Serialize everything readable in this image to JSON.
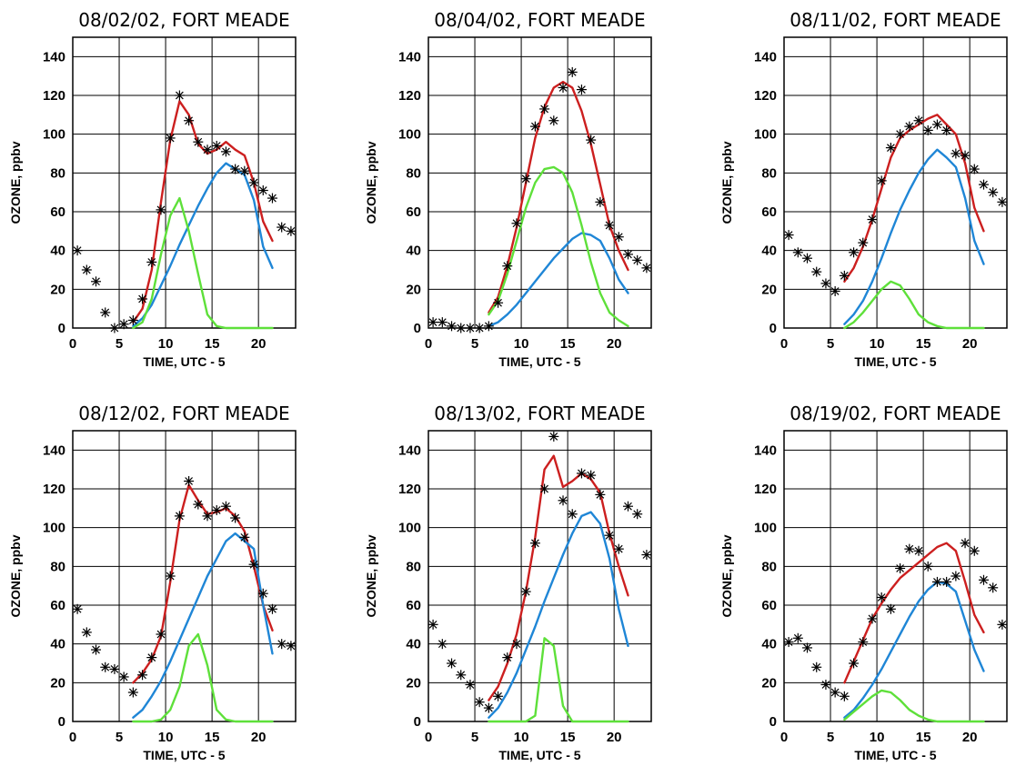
{
  "colors": {
    "red_series": "#cc1f1f",
    "blue_series": "#1f86d6",
    "green_series": "#5ee03a",
    "observations": "#000000"
  },
  "chart_data": [
    {
      "type": "line",
      "title": "08/02/02, FORT MEADE",
      "xlabel": "TIME, UTC - 5",
      "ylabel": "OZONE, ppbv",
      "xlim": [
        0,
        24
      ],
      "ylim": [
        0,
        150
      ],
      "x_ticks": [
        0,
        5,
        10,
        15,
        20
      ],
      "y_ticks": [
        0,
        20,
        40,
        60,
        80,
        100,
        120,
        140
      ],
      "grid": true,
      "observations": {
        "marker": "asterisk",
        "x": [
          0.5,
          1.5,
          2.5,
          3.5,
          4.5,
          5.5,
          6.5,
          7.5,
          8.5,
          9.5,
          10.5,
          11.5,
          12.5,
          13.5,
          14.5,
          15.5,
          16.5,
          17.5,
          18.5,
          19.5,
          20.5,
          21.5,
          22.5,
          23.5
        ],
        "y": [
          40,
          30,
          24,
          8,
          0,
          2,
          4,
          15,
          34,
          61,
          98,
          120,
          107,
          96,
          92,
          94,
          91,
          82,
          81,
          75,
          71,
          67,
          52,
          50
        ]
      },
      "series": [
        {
          "color": "red",
          "x": [
            6.5,
            7.5,
            8.5,
            9.5,
            10.5,
            11.5,
            12.5,
            13.5,
            14.5,
            15.5,
            16.5,
            17.5,
            18.5,
            19.5,
            20.5,
            21.5
          ],
          "y": [
            3,
            10,
            30,
            65,
            97,
            117,
            110,
            95,
            90,
            92,
            96,
            92,
            89,
            75,
            55,
            45
          ]
        },
        {
          "color": "blue",
          "x": [
            6.5,
            7.5,
            8.5,
            9.5,
            10.5,
            11.5,
            12.5,
            13.5,
            14.5,
            15.5,
            16.5,
            17.5,
            18.5,
            19.5,
            20.5,
            21.5
          ],
          "y": [
            1,
            5,
            12,
            22,
            32,
            43,
            53,
            63,
            72,
            80,
            85,
            82,
            79,
            66,
            42,
            31
          ]
        },
        {
          "color": "green",
          "x": [
            6.5,
            7.5,
            8.5,
            9.5,
            10.5,
            11.5,
            12.5,
            13.5,
            14.5,
            15.5,
            16.5,
            17.5,
            18.5,
            19.5,
            20.5,
            21.5
          ],
          "y": [
            0,
            3,
            15,
            38,
            58,
            67,
            50,
            28,
            7,
            1,
            0,
            0,
            0,
            0,
            0,
            0
          ]
        }
      ]
    },
    {
      "type": "line",
      "title": "08/04/02, FORT MEADE",
      "xlabel": "TIME, UTC - 5",
      "ylabel": "OZONE, ppbv",
      "xlim": [
        0,
        24
      ],
      "ylim": [
        0,
        150
      ],
      "x_ticks": [
        0,
        5,
        10,
        15,
        20
      ],
      "y_ticks": [
        0,
        20,
        40,
        60,
        80,
        100,
        120,
        140
      ],
      "grid": true,
      "observations": {
        "marker": "asterisk",
        "x": [
          0.5,
          1.5,
          2.5,
          3.5,
          4.5,
          5.5,
          6.5,
          7.5,
          8.5,
          9.5,
          10.5,
          11.5,
          12.5,
          13.5,
          14.5,
          15.5,
          16.5,
          17.5,
          18.5,
          19.5,
          20.5,
          21.5,
          22.5,
          23.5
        ],
        "y": [
          3,
          3,
          1,
          0,
          0,
          0,
          1,
          13,
          32,
          54,
          77,
          104,
          113,
          107,
          124,
          132,
          123,
          97,
          65,
          53,
          47,
          38,
          35,
          31
        ]
      },
      "series": [
        {
          "color": "red",
          "x": [
            6.5,
            7.5,
            8.5,
            9.5,
            10.5,
            11.5,
            12.5,
            13.5,
            14.5,
            15.5,
            16.5,
            17.5,
            18.5,
            19.5,
            20.5,
            21.5
          ],
          "y": [
            8,
            16,
            32,
            52,
            75,
            98,
            114,
            124,
            127,
            124,
            112,
            95,
            74,
            53,
            40,
            30
          ]
        },
        {
          "color": "blue",
          "x": [
            6.5,
            7.5,
            8.5,
            9.5,
            10.5,
            11.5,
            12.5,
            13.5,
            14.5,
            15.5,
            16.5,
            17.5,
            18.5,
            19.5,
            20.5,
            21.5
          ],
          "y": [
            1,
            3,
            7,
            12,
            18,
            24,
            30,
            36,
            41,
            46,
            49,
            48,
            45,
            36,
            25,
            18
          ]
        },
        {
          "color": "green",
          "x": [
            6.5,
            7.5,
            8.5,
            9.5,
            10.5,
            11.5,
            12.5,
            13.5,
            14.5,
            15.5,
            16.5,
            17.5,
            18.5,
            19.5,
            20.5,
            21.5
          ],
          "y": [
            7,
            14,
            28,
            45,
            62,
            75,
            82,
            83,
            80,
            70,
            53,
            34,
            18,
            8,
            4,
            1
          ]
        }
      ]
    },
    {
      "type": "line",
      "title": "08/11/02, FORT MEADE",
      "xlabel": "TIME, UTC - 5",
      "ylabel": "OZONE, ppbv",
      "xlim": [
        0,
        24
      ],
      "ylim": [
        0,
        150
      ],
      "x_ticks": [
        0,
        5,
        10,
        15,
        20
      ],
      "y_ticks": [
        0,
        20,
        40,
        60,
        80,
        100,
        120,
        140
      ],
      "grid": true,
      "observations": {
        "marker": "asterisk",
        "x": [
          0.5,
          1.5,
          2.5,
          3.5,
          4.5,
          5.5,
          6.5,
          7.5,
          8.5,
          9.5,
          10.5,
          11.5,
          12.5,
          13.5,
          14.5,
          15.5,
          16.5,
          17.5,
          18.5,
          19.5,
          20.5,
          21.5,
          22.5,
          23.5
        ],
        "y": [
          48,
          39,
          36,
          29,
          23,
          19,
          27,
          39,
          44,
          56,
          76,
          93,
          100,
          104,
          107,
          102,
          105,
          102,
          90,
          89,
          82,
          74,
          70,
          65
        ]
      },
      "series": [
        {
          "color": "red",
          "x": [
            6.5,
            7.5,
            8.5,
            9.5,
            10.5,
            11.5,
            12.5,
            13.5,
            14.5,
            15.5,
            16.5,
            17.5,
            18.5,
            19.5,
            20.5,
            21.5
          ],
          "y": [
            24,
            31,
            42,
            56,
            72,
            88,
            98,
            102,
            105,
            108,
            110,
            105,
            100,
            85,
            62,
            50
          ]
        },
        {
          "color": "blue",
          "x": [
            6.5,
            7.5,
            8.5,
            9.5,
            10.5,
            11.5,
            12.5,
            13.5,
            14.5,
            15.5,
            16.5,
            17.5,
            18.5,
            19.5,
            20.5,
            21.5
          ],
          "y": [
            2,
            7,
            14,
            24,
            36,
            49,
            61,
            71,
            80,
            87,
            92,
            88,
            83,
            67,
            45,
            33
          ]
        },
        {
          "color": "green",
          "x": [
            6.5,
            7.5,
            8.5,
            9.5,
            10.5,
            11.5,
            12.5,
            13.5,
            14.5,
            15.5,
            16.5,
            17.5,
            18.5,
            19.5,
            20.5,
            21.5
          ],
          "y": [
            0,
            3,
            8,
            14,
            20,
            24,
            22,
            15,
            7,
            3,
            1,
            0,
            0,
            0,
            0,
            0
          ]
        }
      ]
    },
    {
      "type": "line",
      "title": "08/12/02, FORT MEADE",
      "xlabel": "TIME, UTC - 5",
      "ylabel": "OZONE, ppbv",
      "xlim": [
        0,
        24
      ],
      "ylim": [
        0,
        150
      ],
      "x_ticks": [
        0,
        5,
        10,
        15,
        20
      ],
      "y_ticks": [
        0,
        20,
        40,
        60,
        80,
        100,
        120,
        140
      ],
      "grid": true,
      "observations": {
        "marker": "asterisk",
        "x": [
          0.5,
          1.5,
          2.5,
          3.5,
          4.5,
          5.5,
          6.5,
          7.5,
          8.5,
          9.5,
          10.5,
          11.5,
          12.5,
          13.5,
          14.5,
          15.5,
          16.5,
          17.5,
          18.5,
          19.5,
          20.5,
          21.5,
          22.5,
          23.5
        ],
        "y": [
          58,
          46,
          37,
          28,
          27,
          23,
          15,
          24,
          33,
          45,
          75,
          106,
          124,
          112,
          106,
          109,
          111,
          105,
          95,
          81,
          66,
          58,
          40,
          39
        ]
      },
      "series": [
        {
          "color": "red",
          "x": [
            6.5,
            7.5,
            8.5,
            9.5,
            10.5,
            11.5,
            12.5,
            13.5,
            14.5,
            15.5,
            16.5,
            17.5,
            18.5,
            19.5,
            20.5,
            21.5
          ],
          "y": [
            20,
            25,
            32,
            44,
            72,
            104,
            122,
            114,
            107,
            108,
            110,
            106,
            98,
            80,
            60,
            47
          ]
        },
        {
          "color": "blue",
          "x": [
            6.5,
            7.5,
            8.5,
            9.5,
            10.5,
            11.5,
            12.5,
            13.5,
            14.5,
            15.5,
            16.5,
            17.5,
            18.5,
            19.5,
            20.5,
            21.5
          ],
          "y": [
            2,
            6,
            13,
            21,
            31,
            42,
            53,
            64,
            75,
            84,
            93,
            97,
            93,
            89,
            60,
            35
          ]
        },
        {
          "color": "green",
          "x": [
            6.5,
            7.5,
            8.5,
            9.5,
            10.5,
            11.5,
            12.5,
            13.5,
            14.5,
            15.5,
            16.5,
            17.5,
            18.5,
            19.5,
            20.5,
            21.5
          ],
          "y": [
            0,
            0,
            0,
            1,
            6,
            18,
            39,
            45,
            29,
            6,
            1,
            0,
            0,
            0,
            0,
            0
          ]
        }
      ]
    },
    {
      "type": "line",
      "title": "08/13/02, FORT MEADE",
      "xlabel": "TIME, UTC - 5",
      "ylabel": "OZONE, ppbv",
      "xlim": [
        0,
        24
      ],
      "ylim": [
        0,
        150
      ],
      "x_ticks": [
        0,
        5,
        10,
        15,
        20
      ],
      "y_ticks": [
        0,
        20,
        40,
        60,
        80,
        100,
        120,
        140
      ],
      "grid": true,
      "observations": {
        "marker": "asterisk",
        "x": [
          0.5,
          1.5,
          2.5,
          3.5,
          4.5,
          5.5,
          6.5,
          7.5,
          8.5,
          9.5,
          10.5,
          11.5,
          12.5,
          13.5,
          14.5,
          15.5,
          16.5,
          17.5,
          18.5,
          19.5,
          20.5,
          21.5,
          22.5,
          23.5
        ],
        "y": [
          50,
          40,
          30,
          24,
          19,
          10,
          7,
          13,
          33,
          40,
          67,
          92,
          120,
          147,
          114,
          107,
          128,
          127,
          117,
          96,
          89,
          111,
          107,
          86
        ]
      },
      "series": [
        {
          "color": "red",
          "x": [
            6.5,
            7.5,
            8.5,
            9.5,
            10.5,
            11.5,
            12.5,
            13.5,
            14.5,
            15.5,
            16.5,
            17.5,
            18.5,
            19.5,
            20.5,
            21.5
          ],
          "y": [
            11,
            18,
            30,
            45,
            67,
            95,
            130,
            137,
            121,
            124,
            128,
            125,
            118,
            97,
            80,
            65
          ]
        },
        {
          "color": "blue",
          "x": [
            6.5,
            7.5,
            8.5,
            9.5,
            10.5,
            11.5,
            12.5,
            13.5,
            14.5,
            15.5,
            16.5,
            17.5,
            18.5,
            19.5,
            20.5,
            21.5
          ],
          "y": [
            2,
            7,
            15,
            25,
            37,
            49,
            62,
            74,
            86,
            97,
            106,
            108,
            102,
            84,
            58,
            39
          ]
        },
        {
          "color": "green",
          "x": [
            6.5,
            7.5,
            8.5,
            9.5,
            10.5,
            11.5,
            12.5,
            13.5,
            14.5,
            15.5,
            16.5,
            17.5,
            18.5,
            19.5,
            20.5,
            21.5
          ],
          "y": [
            0,
            0,
            0,
            0,
            0,
            3,
            43,
            39,
            8,
            0,
            0,
            0,
            0,
            0,
            0,
            0
          ]
        }
      ]
    },
    {
      "type": "line",
      "title": "08/19/02, FORT MEADE",
      "xlabel": "TIME, UTC - 5",
      "ylabel": "OZONE, ppbv",
      "xlim": [
        0,
        24
      ],
      "ylim": [
        0,
        150
      ],
      "x_ticks": [
        0,
        5,
        10,
        15,
        20
      ],
      "y_ticks": [
        0,
        20,
        40,
        60,
        80,
        100,
        120,
        140
      ],
      "grid": true,
      "observations": {
        "marker": "asterisk",
        "x": [
          0.5,
          1.5,
          2.5,
          3.5,
          4.5,
          5.5,
          6.5,
          7.5,
          8.5,
          9.5,
          10.5,
          11.5,
          12.5,
          13.5,
          14.5,
          15.5,
          16.5,
          17.5,
          18.5,
          19.5,
          20.5,
          21.5,
          22.5,
          23.5
        ],
        "y": [
          41,
          43,
          38,
          28,
          19,
          15,
          13,
          30,
          41,
          53,
          64,
          58,
          79,
          89,
          88,
          80,
          72,
          72,
          75,
          92,
          88,
          73,
          69,
          50
        ]
      },
      "series": [
        {
          "color": "red",
          "x": [
            6.5,
            7.5,
            8.5,
            9.5,
            10.5,
            11.5,
            12.5,
            13.5,
            14.5,
            15.5,
            16.5,
            17.5,
            18.5,
            19.5,
            20.5,
            21.5
          ],
          "y": [
            20,
            31,
            42,
            53,
            61,
            68,
            74,
            78,
            82,
            86,
            90,
            92,
            88,
            72,
            55,
            46
          ]
        },
        {
          "color": "blue",
          "x": [
            6.5,
            7.5,
            8.5,
            9.5,
            10.5,
            11.5,
            12.5,
            13.5,
            14.5,
            15.5,
            16.5,
            17.5,
            18.5,
            19.5,
            20.5,
            21.5
          ],
          "y": [
            2,
            6,
            12,
            19,
            27,
            36,
            45,
            54,
            62,
            68,
            72,
            71,
            67,
            52,
            37,
            26
          ]
        },
        {
          "color": "green",
          "x": [
            6.5,
            7.5,
            8.5,
            9.5,
            10.5,
            11.5,
            12.5,
            13.5,
            14.5,
            15.5,
            16.5,
            17.5,
            18.5,
            19.5,
            20.5,
            21.5
          ],
          "y": [
            1,
            5,
            9,
            13,
            16,
            15,
            11,
            6,
            3,
            1,
            0,
            0,
            0,
            0,
            0,
            0
          ]
        }
      ]
    }
  ]
}
